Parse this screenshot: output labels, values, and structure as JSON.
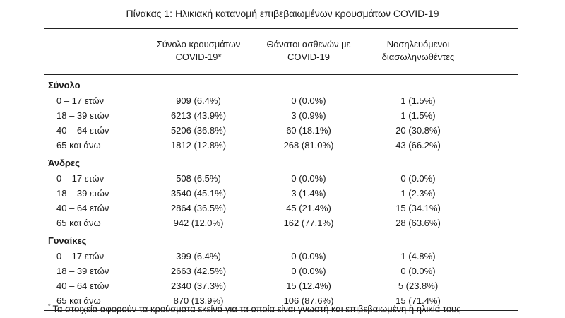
{
  "title": "Πίνακας 1: Ηλικιακή κατανομή επιβεβαιωμένων κρουσμάτων COVID-19",
  "columns": [
    {
      "line1": "Σύνολο κρουσμάτων",
      "line2": "COVID-19*"
    },
    {
      "line1": "Θάνατοι ασθενών με",
      "line2": "COVID-19"
    },
    {
      "line1": "Νοσηλευόμενοι",
      "line2": "διασωληνωθέντες"
    }
  ],
  "groups": [
    {
      "label": "Σύνολο",
      "rows": [
        {
          "age": "0 – 17 ετών",
          "cases": "909 (6.4%)",
          "deaths": "0 (0.0%)",
          "intubated": "1 (1.5%)"
        },
        {
          "age": "18 – 39 ετών",
          "cases": "6213 (43.9%)",
          "deaths": "3 (0.9%)",
          "intubated": "1 (1.5%)"
        },
        {
          "age": "40 – 64 ετών",
          "cases": "5206 (36.8%)",
          "deaths": "60 (18.1%)",
          "intubated": "20 (30.8%)"
        },
        {
          "age": "65 και άνω",
          "cases": "1812 (12.8%)",
          "deaths": "268 (81.0%)",
          "intubated": "43 (66.2%)"
        }
      ]
    },
    {
      "label": "Άνδρες",
      "rows": [
        {
          "age": "0 – 17 ετών",
          "cases": "508 (6.5%)",
          "deaths": "0 (0.0%)",
          "intubated": "0 (0.0%)"
        },
        {
          "age": "18 – 39 ετών",
          "cases": "3540 (45.1%)",
          "deaths": "3 (1.4%)",
          "intubated": "1 (2.3%)"
        },
        {
          "age": "40 – 64 ετών",
          "cases": "2864 (36.5%)",
          "deaths": "45 (21.4%)",
          "intubated": "15 (34.1%)"
        },
        {
          "age": "65 και άνω",
          "cases": "942 (12.0%)",
          "deaths": "162 (77.1%)",
          "intubated": "28 (63.6%)"
        }
      ]
    },
    {
      "label": "Γυναίκες",
      "rows": [
        {
          "age": "0 – 17 ετών",
          "cases": "399 (6.4%)",
          "deaths": "0 (0.0%)",
          "intubated": "1 (4.8%)"
        },
        {
          "age": "18 – 39 ετών",
          "cases": "2663 (42.5%)",
          "deaths": "0 (0.0%)",
          "intubated": "0 (0.0%)"
        },
        {
          "age": "40 – 64 ετών",
          "cases": "2340 (37.3%)",
          "deaths": "15 (12.4%)",
          "intubated": "5 (23.8%)"
        },
        {
          "age": "65 και άνω",
          "cases": "870 (13.9%)",
          "deaths": "106 (87.6%)",
          "intubated": "15 (71.4%)"
        }
      ]
    }
  ],
  "footnote": {
    "marker": "*",
    "text": "Τα στοιχεία αφορούν τα κρούσματα εκείνα για τα οποία είναι γνωστή και επιβεβαιωμένη η ηλικία τους"
  }
}
